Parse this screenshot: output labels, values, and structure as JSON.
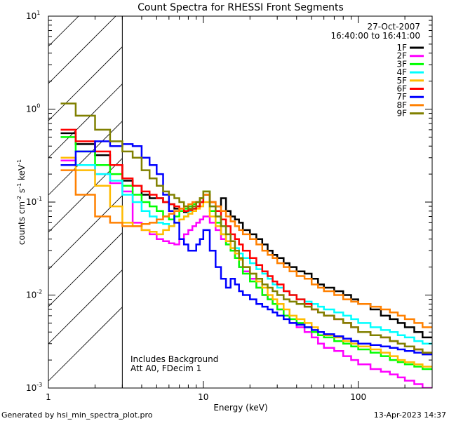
{
  "chart_data": {
    "type": "line",
    "title": "Count Spectra for RHESSI Front Segments",
    "xlabel": "Energy (keV)",
    "ylabel": {
      "base": "counts cm",
      "exp1": "-2",
      "mid1": " s",
      "exp2": "-1",
      "mid2": " keV",
      "exp3": "-1"
    },
    "xscale": "log",
    "yscale": "log",
    "xlim": [
      1,
      300
    ],
    "ylim": [
      0.001,
      10
    ],
    "x_ticks": [
      {
        "value": 1,
        "label": "1"
      },
      {
        "value": 10,
        "label": "10"
      },
      {
        "value": 100,
        "label": "100"
      }
    ],
    "y_ticks": [
      {
        "value": 0.001,
        "base": "10",
        "exp": "-3"
      },
      {
        "value": 0.01,
        "base": "10",
        "exp": "-2"
      },
      {
        "value": 0.1,
        "base": "10",
        "exp": "-1"
      },
      {
        "value": 1,
        "base": "10",
        "exp": "0"
      },
      {
        "value": 10,
        "base": "10",
        "exp": "1"
      }
    ],
    "hatched_region_max_energy": 3,
    "date": "27-Oct-2007",
    "time_range": "16:40:00 to 16:41:00",
    "annotations": [
      "Includes Background",
      "Att A0, FDecim 1"
    ],
    "energy_edges": [
      1.2,
      1.5,
      2,
      2.5,
      3,
      3.5,
      4,
      4.5,
      5,
      5.5,
      6,
      6.5,
      7,
      7.5,
      8,
      8.5,
      9,
      9.5,
      10,
      11,
      12,
      13,
      14,
      15,
      16,
      17,
      18,
      20,
      22,
      24,
      26,
      28,
      30,
      33,
      36,
      40,
      45,
      50,
      55,
      60,
      70,
      80,
      90,
      100,
      120,
      140,
      160,
      180,
      200,
      230,
      260,
      300
    ],
    "series": [
      {
        "name": "1F",
        "color": "#000000",
        "values": [
          0.55,
          0.42,
          0.32,
          0.25,
          0.17,
          0.15,
          0.12,
          0.11,
          0.11,
          0.1,
          0.095,
          0.085,
          0.08,
          0.078,
          0.08,
          0.085,
          0.09,
          0.1,
          0.12,
          0.1,
          0.09,
          0.11,
          0.08,
          0.07,
          0.065,
          0.06,
          0.05,
          0.045,
          0.04,
          0.035,
          0.03,
          0.027,
          0.025,
          0.022,
          0.02,
          0.018,
          0.017,
          0.015,
          0.013,
          0.012,
          0.011,
          0.01,
          0.009,
          0.008,
          0.007,
          0.006,
          0.0055,
          0.005,
          0.0045,
          0.004,
          0.0035
        ]
      },
      {
        "name": "2F",
        "color": "#ff00ff",
        "values": [
          0.28,
          0.25,
          0.2,
          0.16,
          0.13,
          0.06,
          0.05,
          0.045,
          0.04,
          0.038,
          0.036,
          0.035,
          0.04,
          0.045,
          0.05,
          0.055,
          0.06,
          0.065,
          0.07,
          0.06,
          0.05,
          0.04,
          0.035,
          0.03,
          0.025,
          0.02,
          0.018,
          0.015,
          0.012,
          0.01,
          0.009,
          0.008,
          0.007,
          0.006,
          0.005,
          0.0045,
          0.004,
          0.0035,
          0.003,
          0.0027,
          0.0025,
          0.0022,
          0.002,
          0.0018,
          0.0016,
          0.0015,
          0.0014,
          0.0013,
          0.0012,
          0.0011,
          0.001
        ]
      },
      {
        "name": "3F",
        "color": "#00ff00",
        "values": [
          0.5,
          0.35,
          0.25,
          0.2,
          0.15,
          0.12,
          0.1,
          0.09,
          0.08,
          0.07,
          0.065,
          0.07,
          0.08,
          0.085,
          0.09,
          0.095,
          0.1,
          0.11,
          0.13,
          0.08,
          0.06,
          0.045,
          0.035,
          0.03,
          0.025,
          0.02,
          0.017,
          0.014,
          0.012,
          0.01,
          0.009,
          0.008,
          0.007,
          0.006,
          0.0055,
          0.005,
          0.0045,
          0.004,
          0.0037,
          0.0035,
          0.0032,
          0.003,
          0.0028,
          0.0026,
          0.0024,
          0.0022,
          0.002,
          0.0019,
          0.0018,
          0.0017,
          0.0016
        ]
      },
      {
        "name": "4F",
        "color": "#00ffff",
        "values": [
          0.3,
          0.25,
          0.2,
          0.17,
          0.12,
          0.1,
          0.08,
          0.07,
          0.06,
          0.058,
          0.055,
          0.06,
          0.065,
          0.07,
          0.08,
          0.085,
          0.09,
          0.1,
          0.12,
          0.09,
          0.07,
          0.055,
          0.045,
          0.038,
          0.032,
          0.028,
          0.025,
          0.022,
          0.019,
          0.017,
          0.015,
          0.013,
          0.012,
          0.011,
          0.01,
          0.009,
          0.0085,
          0.008,
          0.0075,
          0.007,
          0.0065,
          0.006,
          0.0055,
          0.005,
          0.0045,
          0.0042,
          0.004,
          0.0037,
          0.0035,
          0.0032,
          0.003
        ]
      },
      {
        "name": "5F",
        "color": "#ffbb00",
        "values": [
          0.3,
          0.22,
          0.15,
          0.09,
          0.06,
          0.055,
          0.05,
          0.048,
          0.045,
          0.05,
          0.055,
          0.06,
          0.065,
          0.07,
          0.075,
          0.08,
          0.085,
          0.09,
          0.1,
          0.07,
          0.055,
          0.045,
          0.038,
          0.032,
          0.028,
          0.024,
          0.02,
          0.017,
          0.014,
          0.012,
          0.01,
          0.009,
          0.008,
          0.007,
          0.006,
          0.0055,
          0.005,
          0.0045,
          0.004,
          0.0037,
          0.0035,
          0.0032,
          0.003,
          0.0028,
          0.0026,
          0.0024,
          0.0022,
          0.002,
          0.0019,
          0.0018,
          0.0017
        ]
      },
      {
        "name": "6F",
        "color": "#ff0000",
        "values": [
          0.6,
          0.45,
          0.35,
          0.25,
          0.18,
          0.15,
          0.13,
          0.12,
          0.11,
          0.1,
          0.095,
          0.09,
          0.085,
          0.08,
          0.082,
          0.085,
          0.09,
          0.1,
          0.12,
          0.1,
          0.08,
          0.065,
          0.055,
          0.045,
          0.04,
          0.035,
          0.03,
          0.025,
          0.021,
          0.018,
          0.016,
          0.014,
          0.013,
          0.011,
          0.01,
          0.009,
          0.008,
          0.007,
          0.0065,
          0.006,
          0.0055,
          0.005,
          0.0045,
          0.004,
          0.0037,
          0.0035,
          0.0032,
          0.003,
          0.0028,
          0.0026,
          0.0024
        ]
      },
      {
        "name": "7F",
        "color": "#0000ff",
        "values": [
          0.25,
          0.35,
          0.45,
          0.4,
          0.42,
          0.4,
          0.3,
          0.25,
          0.2,
          0.12,
          0.08,
          0.06,
          0.04,
          0.035,
          0.03,
          0.03,
          0.035,
          0.04,
          0.05,
          0.03,
          0.02,
          0.015,
          0.012,
          0.015,
          0.013,
          0.011,
          0.01,
          0.009,
          0.008,
          0.0075,
          0.007,
          0.0065,
          0.006,
          0.0055,
          0.005,
          0.0048,
          0.0045,
          0.0042,
          0.004,
          0.0038,
          0.0036,
          0.0034,
          0.0032,
          0.003,
          0.0029,
          0.0028,
          0.0027,
          0.0026,
          0.0025,
          0.0024,
          0.0023
        ]
      },
      {
        "name": "8F",
        "color": "#ff8000",
        "values": [
          0.22,
          0.12,
          0.07,
          0.06,
          0.055,
          0.055,
          0.058,
          0.06,
          0.065,
          0.07,
          0.075,
          0.08,
          0.085,
          0.09,
          0.095,
          0.1,
          0.1,
          0.11,
          0.12,
          0.1,
          0.09,
          0.08,
          0.07,
          0.062,
          0.055,
          0.05,
          0.045,
          0.04,
          0.035,
          0.03,
          0.027,
          0.025,
          0.022,
          0.02,
          0.018,
          0.016,
          0.015,
          0.013,
          0.012,
          0.011,
          0.01,
          0.009,
          0.0085,
          0.008,
          0.0075,
          0.007,
          0.0065,
          0.006,
          0.0055,
          0.005,
          0.0045
        ]
      },
      {
        "name": "9F",
        "color": "#808000",
        "values": [
          1.15,
          0.85,
          0.6,
          0.45,
          0.35,
          0.3,
          0.22,
          0.18,
          0.15,
          0.13,
          0.12,
          0.11,
          0.1,
          0.09,
          0.085,
          0.09,
          0.1,
          0.11,
          0.13,
          0.09,
          0.07,
          0.055,
          0.045,
          0.038,
          0.03,
          0.025,
          0.02,
          0.017,
          0.015,
          0.013,
          0.012,
          0.011,
          0.01,
          0.009,
          0.0085,
          0.008,
          0.0075,
          0.007,
          0.0065,
          0.006,
          0.0055,
          0.005,
          0.0045,
          0.004,
          0.0037,
          0.0035,
          0.0032,
          0.003,
          0.0028,
          0.0026,
          0.0024
        ]
      }
    ]
  },
  "footer": {
    "left": "Generated by hsi_min_spectra_plot.pro",
    "right": "13-Apr-2023 14:37"
  }
}
